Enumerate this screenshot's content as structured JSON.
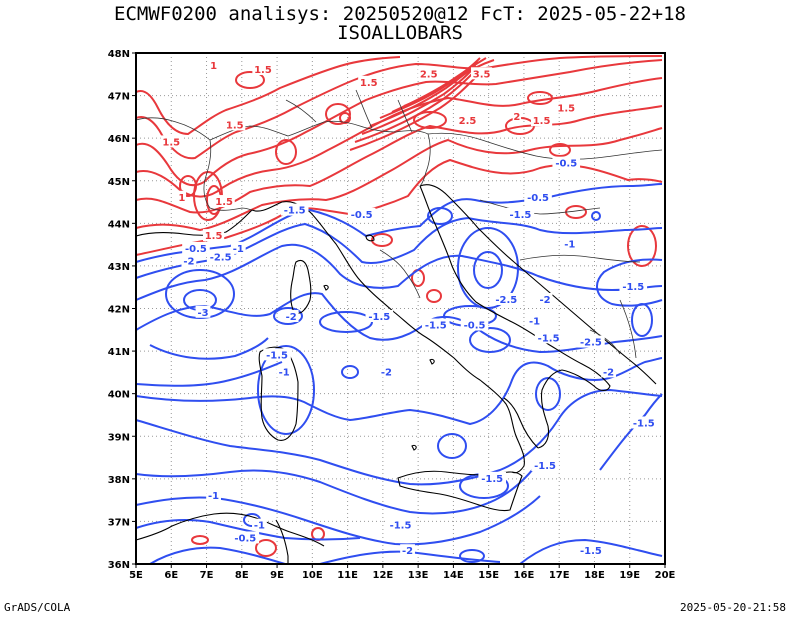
{
  "title_line1": "ECMWF0200 analisys: 20250520@12 FcT: 2025-05-22+18",
  "title_line2": "ISOALLOBARS",
  "footer_left": "GrADS/COLA",
  "footer_right": "2025-05-20-21:58",
  "map": {
    "lon_range": [
      5,
      20
    ],
    "lat_range": [
      36,
      48
    ],
    "grid": "dotted",
    "lon_ticks": [
      "5E",
      "6E",
      "7E",
      "8E",
      "9E",
      "10E",
      "11E",
      "12E",
      "13E",
      "14E",
      "15E",
      "16E",
      "17E",
      "18E",
      "19E",
      "20E"
    ],
    "lat_ticks": [
      "36N",
      "37N",
      "38N",
      "39N",
      "40N",
      "41N",
      "42N",
      "43N",
      "44N",
      "45N",
      "46N",
      "47N",
      "48N"
    ],
    "colors": {
      "positive": "#e8383c",
      "negative": "#2f4ef0",
      "coast": "#000000",
      "border": "#555555",
      "grid": "#999999"
    },
    "contour_labels_positive": [
      {
        "text": "1",
        "lon": 7.2,
        "lat": 47.7
      },
      {
        "text": "1.5",
        "lon": 8.6,
        "lat": 47.6
      },
      {
        "text": "2.5",
        "lon": 13.3,
        "lat": 47.5
      },
      {
        "text": "3.5",
        "lon": 14.8,
        "lat": 47.5
      },
      {
        "text": "1.5",
        "lon": 11.6,
        "lat": 47.3
      },
      {
        "text": "1.5",
        "lon": 7.8,
        "lat": 46.3
      },
      {
        "text": "1.5",
        "lon": 6.0,
        "lat": 45.9
      },
      {
        "text": "2.5",
        "lon": 14.4,
        "lat": 46.4
      },
      {
        "text": "2",
        "lon": 15.8,
        "lat": 46.5
      },
      {
        "text": "1.5",
        "lon": 16.5,
        "lat": 46.4
      },
      {
        "text": "1.5",
        "lon": 17.2,
        "lat": 46.7
      },
      {
        "text": "1",
        "lon": 6.3,
        "lat": 44.6
      },
      {
        "text": "1.5",
        "lon": 7.5,
        "lat": 44.5
      },
      {
        "text": "1.5",
        "lon": 7.2,
        "lat": 43.7
      }
    ],
    "contour_labels_negative": [
      {
        "text": "-0.5",
        "lon": 17.2,
        "lat": 45.4
      },
      {
        "text": "-0.5",
        "lon": 16.4,
        "lat": 44.6
      },
      {
        "text": "-1.5",
        "lon": 15.9,
        "lat": 44.2
      },
      {
        "text": "-1.5",
        "lon": 9.5,
        "lat": 44.3
      },
      {
        "text": "-0.5",
        "lon": 11.4,
        "lat": 44.2
      },
      {
        "text": "-1",
        "lon": 17.3,
        "lat": 43.5
      },
      {
        "text": "-0.5",
        "lon": 6.7,
        "lat": 43.4
      },
      {
        "text": "-1",
        "lon": 7.9,
        "lat": 43.4
      },
      {
        "text": "-2.5",
        "lon": 7.4,
        "lat": 43.2
      },
      {
        "text": "-2",
        "lon": 6.5,
        "lat": 43.1
      },
      {
        "text": "-1.5",
        "lon": 19.1,
        "lat": 42.5
      },
      {
        "text": "-2.5",
        "lon": 15.5,
        "lat": 42.2
      },
      {
        "text": "-2",
        "lon": 16.6,
        "lat": 42.2
      },
      {
        "text": "-3",
        "lon": 6.9,
        "lat": 41.9
      },
      {
        "text": "-2",
        "lon": 9.4,
        "lat": 41.8
      },
      {
        "text": "-1",
        "lon": 16.3,
        "lat": 41.7
      },
      {
        "text": "-1.5",
        "lon": 11.9,
        "lat": 41.8
      },
      {
        "text": "-1.5",
        "lon": 13.5,
        "lat": 41.6
      },
      {
        "text": "-0.5",
        "lon": 14.6,
        "lat": 41.6
      },
      {
        "text": "-1.5",
        "lon": 16.7,
        "lat": 41.3
      },
      {
        "text": "-2.5",
        "lon": 17.9,
        "lat": 41.2
      },
      {
        "text": "-1.5",
        "lon": 9.0,
        "lat": 40.9
      },
      {
        "text": "-1",
        "lon": 9.2,
        "lat": 40.5
      },
      {
        "text": "-2",
        "lon": 12.1,
        "lat": 40.5
      },
      {
        "text": "-2",
        "lon": 18.4,
        "lat": 40.5
      },
      {
        "text": "-1.5",
        "lon": 19.4,
        "lat": 39.3
      },
      {
        "text": "-1.5",
        "lon": 16.6,
        "lat": 38.3
      },
      {
        "text": "-1.5",
        "lon": 15.1,
        "lat": 38.0
      },
      {
        "text": "-1",
        "lon": 7.2,
        "lat": 37.6
      },
      {
        "text": "-1",
        "lon": 8.5,
        "lat": 36.9
      },
      {
        "text": "-1.5",
        "lon": 12.5,
        "lat": 36.9
      },
      {
        "text": "-0.5",
        "lon": 8.1,
        "lat": 36.6
      },
      {
        "text": "-2",
        "lon": 12.7,
        "lat": 36.3
      },
      {
        "text": "-1.5",
        "lon": 17.9,
        "lat": 36.3
      }
    ]
  }
}
